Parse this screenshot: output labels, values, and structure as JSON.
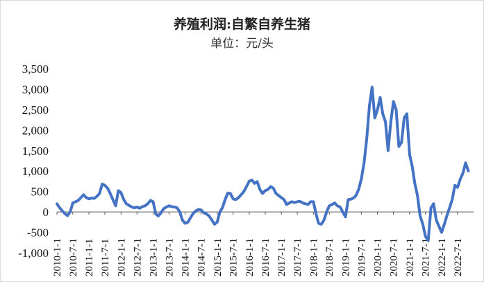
{
  "title": "养殖利润:自繁自养生猪",
  "subtitle": "单位：元/头",
  "chart_data": {
    "type": "line",
    "title": "养殖利润:自繁自养生猪",
    "subtitle": "单位：元/头",
    "xlabel": "",
    "ylabel": "",
    "ylim": [
      -1000,
      3500
    ],
    "yticks": [
      -1000,
      -500,
      0,
      500,
      1000,
      1500,
      2000,
      2500,
      3000,
      3500
    ],
    "ytick_labels": [
      "-1,000",
      "-500",
      "0",
      "500",
      "1,000",
      "1,500",
      "2,000",
      "2,500",
      "3,000",
      "3,500"
    ],
    "xlim": [
      "2010-01-01",
      "2022-12-31"
    ],
    "xtick_labels": [
      "2010-1-1",
      "2010-7-1",
      "2011-1-1",
      "2011-7-1",
      "2012-1-1",
      "2012-7-1",
      "2013-1-1",
      "2013-7-1",
      "2014-1-1",
      "2014-7-1",
      "2015-1-1",
      "2015-7-1",
      "2016-1-1",
      "2016-7-1",
      "2017-1-1",
      "2017-7-1",
      "2018-1-1",
      "2018-7-1",
      "2019-1-1",
      "2019-7-1",
      "2020-1-1",
      "2020-7-1",
      "2021-1-1",
      "2021-7-1",
      "2022-1-1",
      "2022-7-1"
    ],
    "grid": false,
    "color": "#4472c4",
    "series": [
      {
        "x": [
          "2010-01-01",
          "2010-02-01",
          "2010-03-01",
          "2010-04-01",
          "2010-05-01",
          "2010-06-01",
          "2010-07-01",
          "2010-08-01",
          "2010-09-01",
          "2010-10-01",
          "2010-11-01",
          "2010-12-01",
          "2011-01-01",
          "2011-02-01",
          "2011-03-01",
          "2011-04-01",
          "2011-05-01",
          "2011-06-01",
          "2011-07-01",
          "2011-08-01",
          "2011-09-01",
          "2011-10-01",
          "2011-11-01",
          "2011-12-01",
          "2012-01-01",
          "2012-02-01",
          "2012-03-01",
          "2012-04-01",
          "2012-05-01",
          "2012-06-01",
          "2012-07-01",
          "2012-08-01",
          "2012-09-01",
          "2012-10-01",
          "2012-11-01",
          "2012-12-01",
          "2013-01-01",
          "2013-02-01",
          "2013-03-01",
          "2013-04-01",
          "2013-05-01",
          "2013-06-01",
          "2013-07-01",
          "2013-08-01",
          "2013-09-01",
          "2013-10-01",
          "2013-11-01",
          "2013-12-01",
          "2014-01-01",
          "2014-02-01",
          "2014-03-01",
          "2014-04-01",
          "2014-05-01",
          "2014-06-01",
          "2014-07-01",
          "2014-08-01",
          "2014-09-01",
          "2014-10-01",
          "2014-11-01",
          "2014-12-01",
          "2015-01-01",
          "2015-02-01",
          "2015-03-01",
          "2015-04-01",
          "2015-05-01",
          "2015-06-01",
          "2015-07-01",
          "2015-08-01",
          "2015-09-01",
          "2015-10-01",
          "2015-11-01",
          "2015-12-01",
          "2016-01-01",
          "2016-02-01",
          "2016-03-01",
          "2016-04-01",
          "2016-05-01",
          "2016-06-01",
          "2016-07-01",
          "2016-08-01",
          "2016-09-01",
          "2016-10-01",
          "2016-11-01",
          "2016-12-01",
          "2017-01-01",
          "2017-02-01",
          "2017-03-01",
          "2017-04-01",
          "2017-05-01",
          "2017-06-01",
          "2017-07-01",
          "2017-08-01",
          "2017-09-01",
          "2017-10-01",
          "2017-11-01",
          "2017-12-01",
          "2018-01-01",
          "2018-02-01",
          "2018-03-01",
          "2018-04-01",
          "2018-05-01",
          "2018-06-01",
          "2018-07-01",
          "2018-08-01",
          "2018-09-01",
          "2018-10-01",
          "2018-11-01",
          "2018-12-01",
          "2019-01-01",
          "2019-02-01",
          "2019-03-01",
          "2019-04-01",
          "2019-05-01",
          "2019-06-01",
          "2019-07-01",
          "2019-08-01",
          "2019-09-01",
          "2019-10-01",
          "2019-11-01",
          "2019-12-01",
          "2020-01-01",
          "2020-02-01",
          "2020-03-01",
          "2020-04-01",
          "2020-05-01",
          "2020-06-01",
          "2020-07-01",
          "2020-08-01",
          "2020-09-01",
          "2020-10-01",
          "2020-11-01",
          "2020-12-01",
          "2021-01-01",
          "2021-02-01",
          "2021-03-01",
          "2021-04-01",
          "2021-05-01",
          "2021-06-01",
          "2021-07-01",
          "2021-08-01",
          "2021-09-01",
          "2021-10-01",
          "2021-11-01",
          "2021-12-01",
          "2022-01-01",
          "2022-02-01",
          "2022-03-01",
          "2022-04-01",
          "2022-05-01",
          "2022-06-01",
          "2022-07-01",
          "2022-08-01",
          "2022-09-01",
          "2022-10-01",
          "2022-11-01"
        ],
        "values": [
          200,
          100,
          30,
          -40,
          -90,
          0,
          220,
          250,
          280,
          350,
          420,
          350,
          320,
          340,
          330,
          380,
          450,
          680,
          650,
          580,
          450,
          300,
          150,
          520,
          470,
          300,
          200,
          160,
          120,
          100,
          120,
          90,
          130,
          150,
          200,
          280,
          250,
          -50,
          -100,
          -20,
          80,
          120,
          150,
          130,
          120,
          100,
          0,
          -200,
          -280,
          -250,
          -150,
          -40,
          20,
          60,
          50,
          -20,
          -50,
          -100,
          -200,
          -300,
          -250,
          0,
          100,
          300,
          460,
          450,
          320,
          300,
          350,
          420,
          500,
          620,
          750,
          780,
          700,
          740,
          550,
          450,
          520,
          550,
          620,
          580,
          450,
          400,
          350,
          300,
          180,
          220,
          250,
          230,
          250,
          260,
          220,
          200,
          180,
          250,
          250,
          -50,
          -280,
          -300,
          -200,
          0,
          150,
          180,
          220,
          150,
          120,
          0,
          -120,
          300,
          310,
          340,
          400,
          550,
          800,
          1200,
          1800,
          2600,
          3050,
          2300,
          2500,
          2800,
          2400,
          2200,
          1500,
          2200,
          2700,
          2500,
          1600,
          1700,
          2300,
          2400,
          1400,
          1100,
          700,
          400,
          -100,
          -300,
          -600,
          -700,
          100,
          200,
          -200,
          -350,
          -500,
          -300,
          -100,
          100,
          300,
          650,
          600,
          800,
          950,
          1200,
          1000
        ]
      }
    ]
  }
}
